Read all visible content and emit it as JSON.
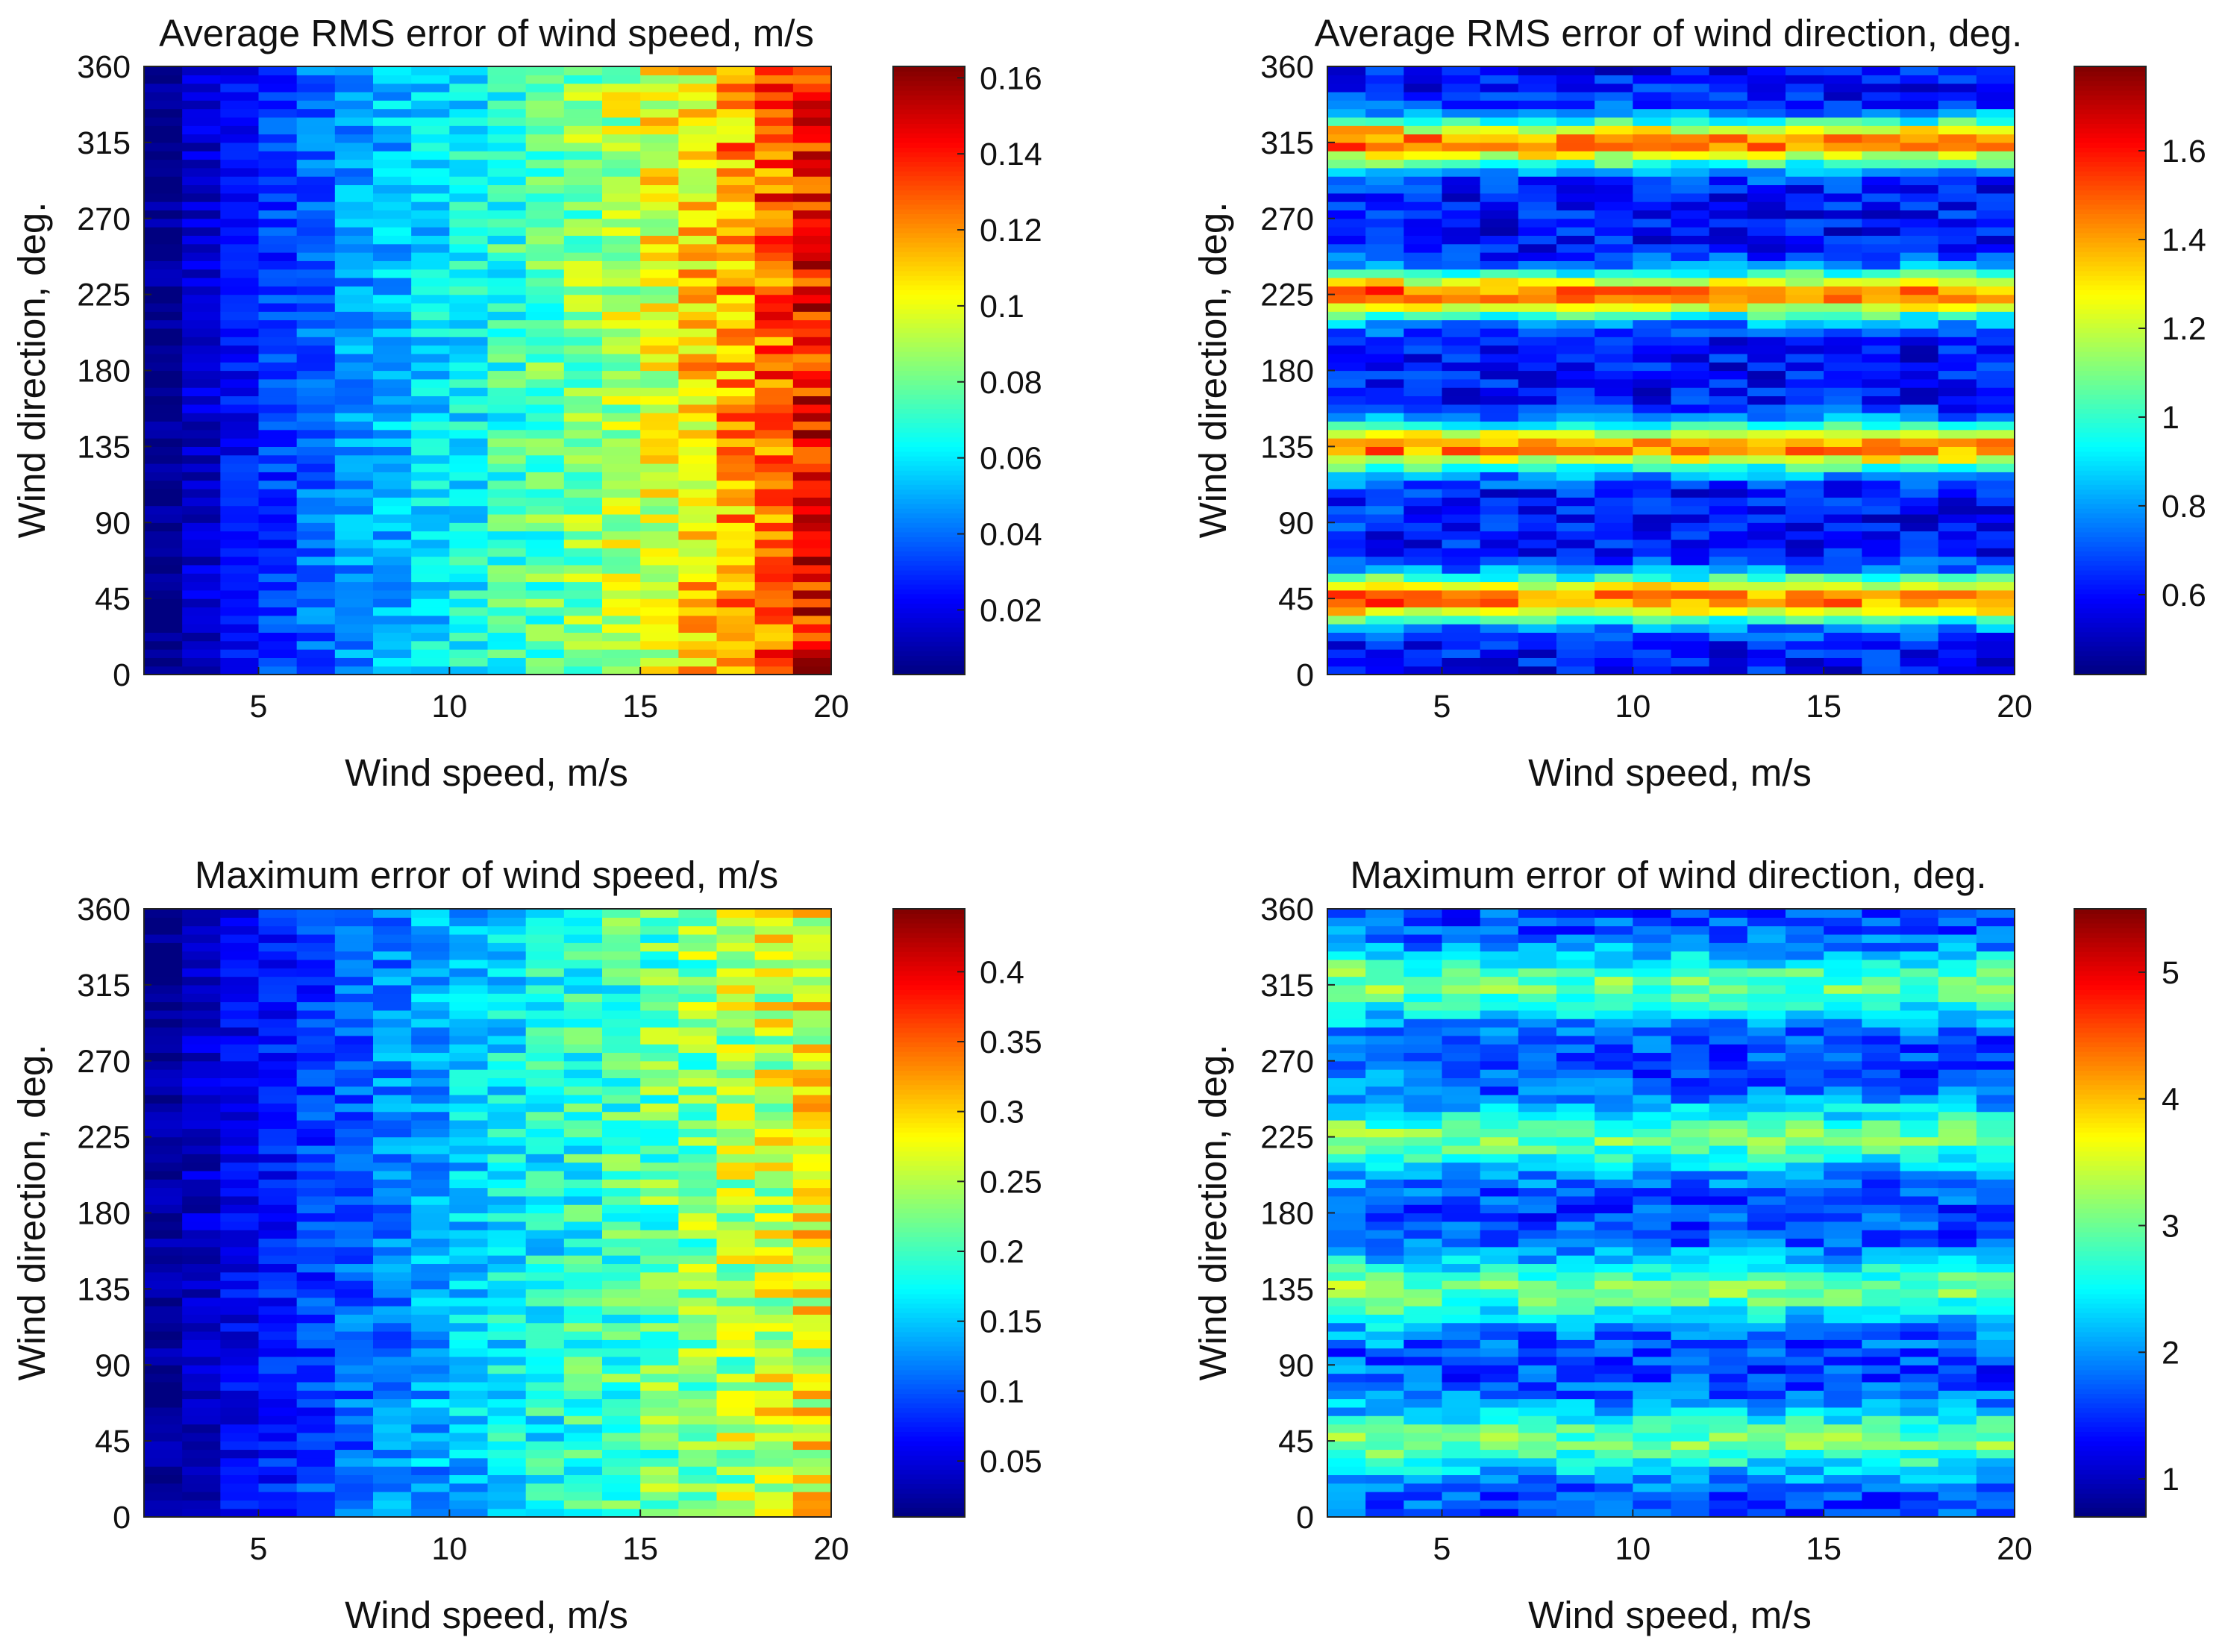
{
  "figure": {
    "background": "#ffffff"
  },
  "chart_data": [
    {
      "type": "heatmap",
      "title": "Average RMS error of wind speed, m/s",
      "xlabel": "Wind speed, m/s",
      "ylabel": "Wind direction, deg.",
      "xlim": [
        2,
        20
      ],
      "ylim": [
        0,
        360
      ],
      "x_ticks": [
        5,
        10,
        15,
        20
      ],
      "x_tick_labels": [
        "5",
        "10",
        "15",
        "20"
      ],
      "y_ticks": [
        0,
        45,
        90,
        135,
        180,
        225,
        270,
        315,
        360
      ],
      "y_tick_labels": [
        "0",
        "45",
        "90",
        "135",
        "180",
        "225",
        "270",
        "315",
        "360"
      ],
      "colorbar": {
        "colormap": "jet",
        "range": [
          0.003,
          0.163
        ],
        "ticks": [
          0.02,
          0.04,
          0.06,
          0.08,
          0.1,
          0.12,
          0.14,
          0.16
        ],
        "tick_labels": [
          "0.02",
          "0.04",
          "0.06",
          "0.08",
          "0.1",
          "0.12",
          "0.14",
          "0.16"
        ]
      },
      "pattern": "speed_gradient",
      "x_columns": 18,
      "y_rows": 72,
      "value_by_column": [
        0.005,
        0.015,
        0.024,
        0.032,
        0.039,
        0.046,
        0.052,
        0.058,
        0.063,
        0.07,
        0.076,
        0.083,
        0.091,
        0.099,
        0.108,
        0.118,
        0.13,
        0.143
      ]
    },
    {
      "type": "heatmap",
      "title": "Average RMS error of wind direction, deg.",
      "xlabel": "Wind speed, m/s",
      "ylabel": "Wind direction, deg.",
      "xlim": [
        2,
        20
      ],
      "ylim": [
        0,
        360
      ],
      "x_ticks": [
        5,
        10,
        15,
        20
      ],
      "x_tick_labels": [
        "5",
        "10",
        "15",
        "20"
      ],
      "y_ticks": [
        0,
        45,
        90,
        135,
        180,
        225,
        270,
        315,
        360
      ],
      "y_tick_labels": [
        "0",
        "45",
        "90",
        "135",
        "180",
        "225",
        "270",
        "315",
        "360"
      ],
      "colorbar": {
        "colormap": "jet",
        "range": [
          0.42,
          1.79
        ],
        "ticks": [
          0.6,
          0.8,
          1,
          1.2,
          1.4,
          1.6
        ],
        "tick_labels": [
          "0.6",
          "0.8",
          "1",
          "1.2",
          "1.4",
          "1.6"
        ]
      },
      "pattern": "direction_bands",
      "x_columns": 18,
      "y_rows": 72,
      "band_centers_deg": [
        45,
        135,
        225,
        315
      ],
      "band_width_deg": 10,
      "base_value": 0.6,
      "band_peak_value": 1.45
    },
    {
      "type": "heatmap",
      "title": "Maximum error of wind speed, m/s",
      "xlabel": "Wind speed, m/s",
      "ylabel": "Wind direction, deg.",
      "xlim": [
        2,
        20
      ],
      "ylim": [
        0,
        360
      ],
      "x_ticks": [
        5,
        10,
        15,
        20
      ],
      "x_tick_labels": [
        "5",
        "10",
        "15",
        "20"
      ],
      "y_ticks": [
        0,
        45,
        90,
        135,
        180,
        225,
        270,
        315,
        360
      ],
      "y_tick_labels": [
        "0",
        "45",
        "90",
        "135",
        "180",
        "225",
        "270",
        "315",
        "360"
      ],
      "colorbar": {
        "colormap": "jet",
        "range": [
          0.01,
          0.445
        ],
        "ticks": [
          0.05,
          0.1,
          0.15,
          0.2,
          0.25,
          0.3,
          0.35,
          0.4
        ],
        "tick_labels": [
          "0.05",
          "0.1",
          "0.15",
          "0.2",
          "0.25",
          "0.3",
          "0.35",
          "0.4"
        ]
      },
      "pattern": "speed_gradient",
      "x_columns": 18,
      "y_rows": 72,
      "value_by_column": [
        0.02,
        0.04,
        0.06,
        0.075,
        0.09,
        0.105,
        0.12,
        0.135,
        0.15,
        0.165,
        0.175,
        0.19,
        0.2,
        0.215,
        0.23,
        0.245,
        0.26,
        0.275
      ]
    },
    {
      "type": "heatmap",
      "title": "Maximum error of wind direction, deg.",
      "xlabel": "Wind speed, m/s",
      "ylabel": "Wind direction, deg.",
      "xlim": [
        2,
        20
      ],
      "ylim": [
        0,
        360
      ],
      "x_ticks": [
        5,
        10,
        15,
        20
      ],
      "x_tick_labels": [
        "5",
        "10",
        "15",
        "20"
      ],
      "y_ticks": [
        0,
        45,
        90,
        135,
        180,
        225,
        270,
        315,
        360
      ],
      "y_tick_labels": [
        "0",
        "45",
        "90",
        "135",
        "180",
        "225",
        "270",
        "315",
        "360"
      ],
      "colorbar": {
        "colormap": "jet",
        "range": [
          0.7,
          5.5
        ],
        "ticks": [
          1,
          2,
          3,
          4,
          5
        ],
        "tick_labels": [
          "1",
          "2",
          "3",
          "4",
          "5"
        ]
      },
      "pattern": "direction_bands",
      "x_columns": 18,
      "y_rows": 72,
      "band_centers_deg": [
        45,
        135,
        225,
        315
      ],
      "band_width_deg": 14,
      "base_value": 1.6,
      "band_peak_value": 3.0
    }
  ]
}
